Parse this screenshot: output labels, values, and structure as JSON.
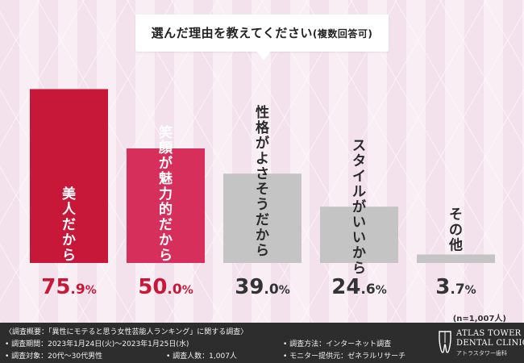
{
  "title": "選んだ理由を教えてください",
  "title_note": "(複数回答可)",
  "n_note": "(n=1,007人)",
  "chart_data": {
    "type": "bar",
    "title": "選んだ理由を教えてください(複数回答可)",
    "categories": [
      "美人だから",
      "笑顔が魅力的だから",
      "性格がよさそうだから",
      "スタイルがいいから",
      "その他"
    ],
    "values": [
      75.9,
      50.0,
      39.0,
      24.6,
      3.7
    ],
    "value_labels": [
      "75.9%",
      "50.0%",
      "39.0%",
      "24.6%",
      "3.7%"
    ],
    "bar_colors": [
      "#c8183a",
      "#d62f5c",
      "#c4c4c4",
      "#c4c4c4",
      "#c4c4c4"
    ],
    "label_colors": [
      "#ffffff",
      "#ffffff",
      "#2a2a2a",
      "#2a2a2a",
      "#2a2a2a"
    ],
    "value_colors": [
      "#c8183a",
      "#c8183a",
      "#333333",
      "#333333",
      "#333333"
    ],
    "ylim": [
      0,
      100
    ],
    "grid": false,
    "legend": "none"
  },
  "footer": {
    "summary": "〈調査概要：「異性にモテると思う女性芸能人ランキング」に関する調査〉",
    "period": "• 調査期間：2023年1月24日(火)〜2023年1月25日(水)",
    "target": "• 調査対象：20代〜30代男性",
    "people": "• 調査人数：1,007人",
    "method": "• 調査方法：インターネット調査",
    "provider": "• モニター提供元：ゼネラルリサーチ"
  },
  "logo": {
    "name_line1": "ATLAS TOWER",
    "name_line2": "DENTAL CLINIC",
    "sub": "アトラスタワー歯科"
  },
  "colors": {
    "background": "#f8eef3",
    "accent_red": "#c8183a",
    "accent_pink": "#d62f5c",
    "neutral_bar": "#c4c4c4",
    "footer_bg": "#2d2d2d"
  }
}
